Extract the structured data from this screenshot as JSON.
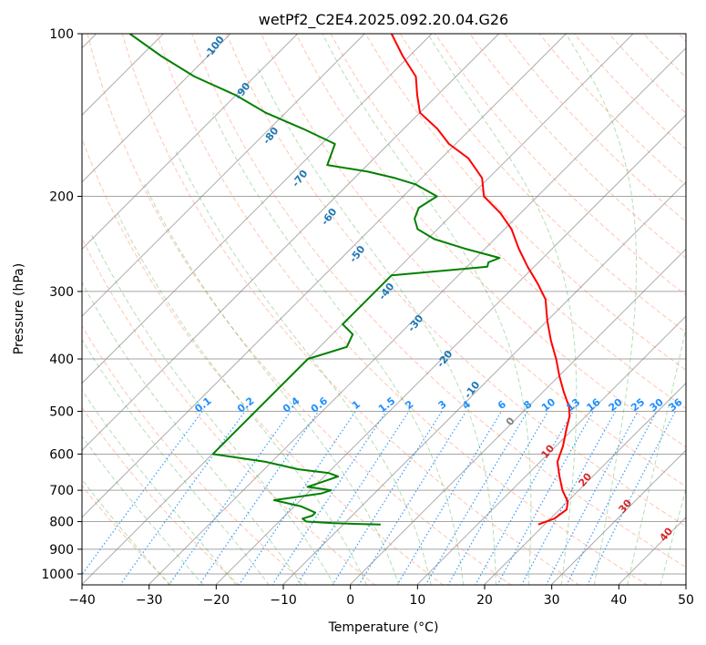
{
  "chart_data": {
    "type": "line",
    "diagram": "skew-T log-p",
    "title": "wetPf2_C2E4.2025.092.20.04.G26",
    "xlabel": "Temperature (°C)",
    "ylabel": "Pressure (hPa)",
    "xlim": [
      -40,
      50
    ],
    "ylim": [
      1050,
      100
    ],
    "x_ticks": [
      -40,
      -30,
      -20,
      -10,
      0,
      10,
      20,
      30,
      40,
      50
    ],
    "y_ticks": [
      100,
      200,
      300,
      400,
      500,
      600,
      700,
      800,
      900,
      1000
    ],
    "grid": true,
    "series": [
      {
        "name": "temperature",
        "color": "#ff0000",
        "pressure": [
          810,
          790,
          760,
          735,
          700,
          660,
          620,
          580,
          540,
          510,
          490,
          460,
          430,
          400,
          370,
          340,
          310,
          290,
          270,
          250,
          230,
          215,
          200,
          185,
          170,
          160,
          150,
          140,
          130,
          120,
          110,
          100
        ],
        "temperature": [
          19,
          20.5,
          21,
          20,
          17.5,
          15,
          12.5,
          11,
          9,
          7.5,
          6,
          3,
          0,
          -3,
          -6.5,
          -10,
          -13.5,
          -17,
          -21,
          -25,
          -29,
          -33,
          -38,
          -41,
          -46,
          -51,
          -55,
          -60,
          -63,
          -66,
          -71,
          -76
        ]
      },
      {
        "name": "dewpoint",
        "color": "#008000",
        "pressure": [
          810,
          808,
          805,
          800,
          790,
          780,
          770,
          750,
          730,
          710,
          700,
          690,
          670,
          660,
          650,
          640,
          630,
          620,
          600,
          400,
          380,
          360,
          345,
          280,
          270,
          265,
          260,
          250,
          240,
          230,
          220,
          210,
          200,
          190,
          185,
          180,
          175,
          160,
          150,
          140,
          130,
          120,
          110,
          100
        ],
        "temperature": [
          -4.5,
          -8,
          -12,
          -16,
          -17,
          -16,
          -16,
          -19,
          -24,
          -18,
          -17,
          -21,
          -19,
          -18,
          -20,
          -25,
          -28,
          -31,
          -40,
          -40,
          -36,
          -37,
          -40,
          -40,
          -27,
          -27.5,
          -26.5,
          -33,
          -39,
          -43,
          -45,
          -46,
          -45,
          -50,
          -54,
          -59,
          -66,
          -68,
          -75,
          -83,
          -90,
          -99,
          -107,
          -115
        ]
      }
    ],
    "dry_adiabat_labels": [
      "-100",
      "-90",
      "-80",
      "-70",
      "-60",
      "-50",
      "-40",
      "-30",
      "-20",
      "-10"
    ],
    "mixing_ratio_labels": [
      "0.1",
      "0.2",
      "0.4",
      "0.6",
      "1",
      "1.5",
      "2",
      "3",
      "4",
      "6",
      "8",
      "10",
      "13",
      "16",
      "20",
      "25",
      "30",
      "36"
    ],
    "moist_adiabat_labels": [
      "0",
      "10",
      "20",
      "30",
      "40"
    ],
    "colors": {
      "isotherm": "#808080",
      "isobar": "#808080",
      "dry_adiabat": "#ff7f50",
      "moist_adiabat": "#2ca02c",
      "mixing_ratio": "#1e90ff",
      "temperature": "#ff0000",
      "dewpoint": "#008000"
    }
  }
}
